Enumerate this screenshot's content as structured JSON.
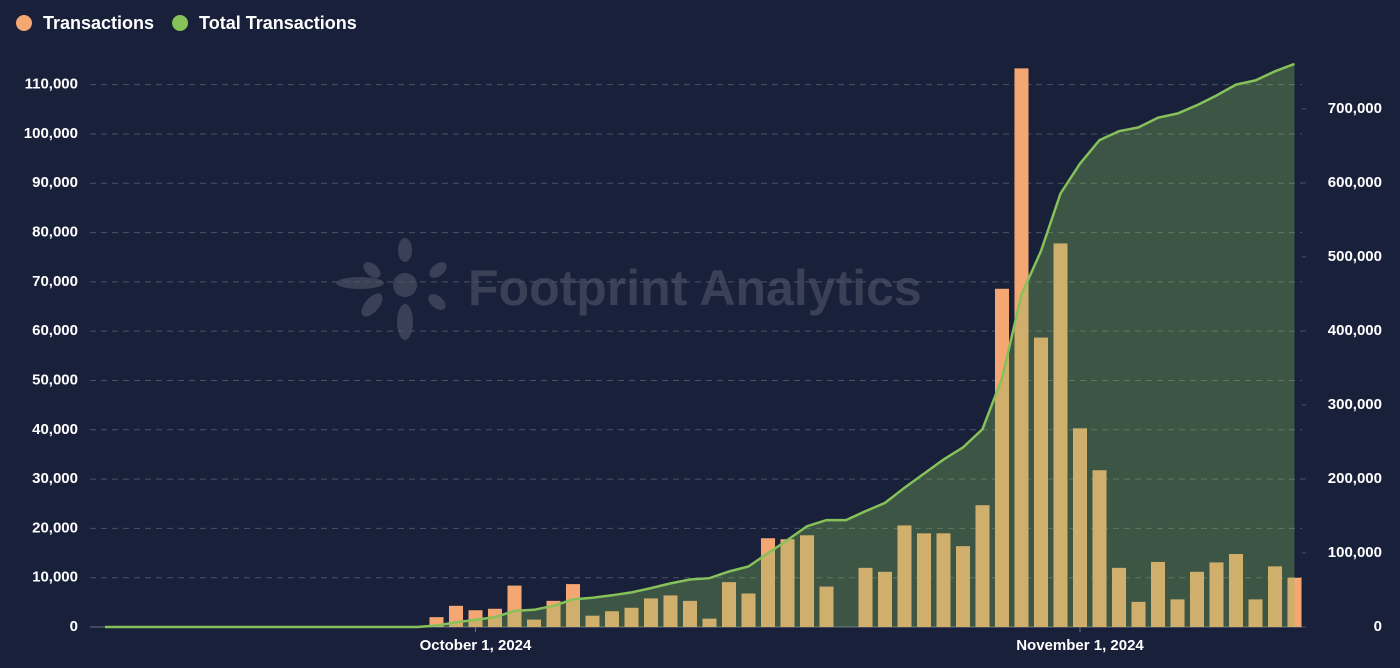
{
  "chart_data": {
    "type": "bar-area",
    "watermark": "Footprint Analytics",
    "x": [
      "2024-09-12",
      "2024-09-13",
      "2024-09-14",
      "2024-09-15",
      "2024-09-16",
      "2024-09-17",
      "2024-09-18",
      "2024-09-19",
      "2024-09-20",
      "2024-09-21",
      "2024-09-22",
      "2024-09-23",
      "2024-09-24",
      "2024-09-25",
      "2024-09-26",
      "2024-09-27",
      "2024-09-28",
      "2024-09-29",
      "2024-09-30",
      "2024-10-01",
      "2024-10-02",
      "2024-10-03",
      "2024-10-04",
      "2024-10-05",
      "2024-10-06",
      "2024-10-07",
      "2024-10-08",
      "2024-10-09",
      "2024-10-10",
      "2024-10-11",
      "2024-10-12",
      "2024-10-13",
      "2024-10-14",
      "2024-10-15",
      "2024-10-16",
      "2024-10-17",
      "2024-10-18",
      "2024-10-19",
      "2024-10-20",
      "2024-10-21",
      "2024-10-22",
      "2024-10-23",
      "2024-10-24",
      "2024-10-25",
      "2024-10-26",
      "2024-10-27",
      "2024-10-28",
      "2024-10-29",
      "2024-10-30",
      "2024-10-31",
      "2024-11-01",
      "2024-11-02",
      "2024-11-03",
      "2024-11-04",
      "2024-11-05",
      "2024-11-06",
      "2024-11-07",
      "2024-11-08",
      "2024-11-09",
      "2024-11-10",
      "2024-11-11",
      "2024-11-12"
    ],
    "xticks": [
      {
        "value": "2024-10-01",
        "label": "October 1, 2024"
      },
      {
        "value": "2024-11-01",
        "label": "November 1, 2024"
      }
    ],
    "series": [
      {
        "name": "Transactions",
        "color": "#f4a673",
        "type": "bar",
        "values": [
          0,
          0,
          0,
          0,
          0,
          0,
          0,
          0,
          0,
          0,
          0,
          0,
          0,
          0,
          0,
          0,
          0,
          2000,
          4300,
          3400,
          3700,
          8400,
          1500,
          5300,
          8700,
          2300,
          3200,
          3900,
          5800,
          6400,
          5300,
          1700,
          9100,
          6800,
          18000,
          17800,
          18600,
          8200,
          0,
          12000,
          11200,
          20600,
          19000,
          19000,
          16400,
          24700,
          68600,
          113300,
          58700,
          77800,
          40300,
          31800,
          12000,
          5100,
          13200,
          5600,
          11200,
          13100,
          14800,
          5600,
          12300,
          10000
        ]
      },
      {
        "name": "Total Transactions",
        "color": "#86c15a",
        "type": "area",
        "axis": "y2",
        "values": [
          0,
          0,
          0,
          0,
          0,
          0,
          0,
          0,
          0,
          0,
          0,
          0,
          0,
          0,
          0,
          0,
          0,
          2000,
          6300,
          9700,
          13400,
          21800,
          23300,
          28600,
          37300,
          39600,
          42800,
          46700,
          52500,
          58900,
          64200,
          65900,
          75000,
          81800,
          99800,
          117600,
          136200,
          144400,
          144400,
          156400,
          167600,
          188200,
          207200,
          226200,
          242600,
          267300,
          335900,
          449200,
          507900,
          585700,
          626000,
          657800,
          669800,
          674900,
          688100,
          693700,
          704900,
          718000,
          732800,
          738400,
          750700,
          760700
        ]
      }
    ],
    "ylim": [
      0,
      115000
    ],
    "yticks": [
      0,
      {
        "value": 10000,
        "label": "10,000"
      },
      {
        "value": 20000,
        "label": "20,000"
      },
      {
        "value": 30000,
        "label": "30,000"
      },
      {
        "value": 40000,
        "label": "40,000"
      },
      {
        "value": 50000,
        "label": "50,000"
      },
      {
        "value": 60000,
        "label": "60,000"
      },
      {
        "value": 70000,
        "label": "70,000"
      },
      {
        "value": 80000,
        "label": "80,000"
      },
      {
        "value": 90000,
        "label": "90,000"
      },
      {
        "value": 100000,
        "label": "100,000"
      },
      {
        "value": 110000,
        "label": "110,000"
      }
    ],
    "y2lim": [
      0,
      766000
    ],
    "y2ticks": [
      0,
      {
        "value": 100000,
        "label": "100,000"
      },
      {
        "value": 200000,
        "label": "200,000"
      },
      {
        "value": 300000,
        "label": "300,000"
      },
      {
        "value": 400000,
        "label": "400,000"
      },
      {
        "value": 500000,
        "label": "500,000"
      },
      {
        "value": 600000,
        "label": "600,000"
      },
      {
        "value": 700000,
        "label": "700,000"
      }
    ],
    "grid": true,
    "legend": "top-left"
  }
}
